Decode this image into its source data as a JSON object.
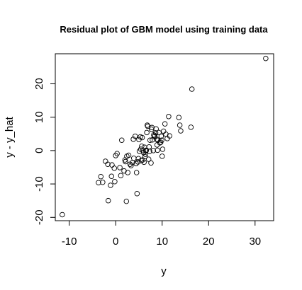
{
  "chart_data": {
    "type": "scatter",
    "title": "Residual plot of GBM model using training data",
    "xlabel": "y",
    "ylabel": "y - y_hat",
    "xlim": [
      -13,
      34
    ],
    "ylim": [
      -21,
      29
    ],
    "x_ticks": [
      -10,
      0,
      10,
      20,
      30
    ],
    "y_ticks": [
      -20,
      -10,
      0,
      10,
      20
    ],
    "x_tick_labels": [
      "-10",
      "0",
      "10",
      "20",
      "30"
    ],
    "y_tick_labels": [
      "-20",
      "-10",
      "0",
      "10",
      "20"
    ],
    "grid": false,
    "legend": "none",
    "marker": "open-circle",
    "colors": {
      "axis": "#000000",
      "points": "#000000",
      "background": "#ffffff"
    },
    "points": [
      {
        "x": -11.5,
        "y": -19.2
      },
      {
        "x": -3.7,
        "y": -9.6
      },
      {
        "x": -3.2,
        "y": -7.8
      },
      {
        "x": -2.8,
        "y": -9.5
      },
      {
        "x": -2.2,
        "y": -3.2
      },
      {
        "x": -1.7,
        "y": -4.1
      },
      {
        "x": -1.6,
        "y": -15.0
      },
      {
        "x": -1.1,
        "y": -10.4
      },
      {
        "x": -0.9,
        "y": -7.7
      },
      {
        "x": -0.8,
        "y": -4.3
      },
      {
        "x": -0.3,
        "y": -5.3
      },
      {
        "x": -0.2,
        "y": -9.3
      },
      {
        "x": 0.0,
        "y": -1.5
      },
      {
        "x": 0.3,
        "y": -0.9
      },
      {
        "x": 0.9,
        "y": -5.1
      },
      {
        "x": 1.1,
        "y": -7.5
      },
      {
        "x": 1.3,
        "y": 3.1
      },
      {
        "x": 1.8,
        "y": -6.1
      },
      {
        "x": 2.0,
        "y": -2.8
      },
      {
        "x": 2.1,
        "y": -3.3
      },
      {
        "x": 2.3,
        "y": -15.2
      },
      {
        "x": 2.4,
        "y": -1.7
      },
      {
        "x": 2.6,
        "y": -6.6
      },
      {
        "x": 2.8,
        "y": -1.4
      },
      {
        "x": 3.1,
        "y": -4.1
      },
      {
        "x": 3.3,
        "y": -4.5
      },
      {
        "x": 3.6,
        "y": -3.6
      },
      {
        "x": 3.8,
        "y": 3.4
      },
      {
        "x": 3.9,
        "y": -2.3
      },
      {
        "x": 4.2,
        "y": 4.3
      },
      {
        "x": 4.4,
        "y": -3.9
      },
      {
        "x": 4.5,
        "y": -6.6
      },
      {
        "x": 4.6,
        "y": -12.9
      },
      {
        "x": 4.8,
        "y": -3.4
      },
      {
        "x": 4.9,
        "y": -2.4
      },
      {
        "x": 5.0,
        "y": 3.3
      },
      {
        "x": 5.1,
        "y": -0.2
      },
      {
        "x": 5.3,
        "y": 4.1
      },
      {
        "x": 5.4,
        "y": 0.4
      },
      {
        "x": 5.5,
        "y": -3.0
      },
      {
        "x": 5.6,
        "y": 1.3
      },
      {
        "x": 5.7,
        "y": 3.9
      },
      {
        "x": 5.8,
        "y": -2.8
      },
      {
        "x": 5.9,
        "y": 0.0
      },
      {
        "x": 6.0,
        "y": -0.6
      },
      {
        "x": 6.1,
        "y": -3.5
      },
      {
        "x": 6.2,
        "y": 1.0
      },
      {
        "x": 6.3,
        "y": -1.8
      },
      {
        "x": 6.4,
        "y": -1.1
      },
      {
        "x": 6.5,
        "y": -0.1
      },
      {
        "x": 6.6,
        "y": 0.1
      },
      {
        "x": 6.7,
        "y": 5.4
      },
      {
        "x": 6.8,
        "y": 7.6
      },
      {
        "x": 6.9,
        "y": 7.3
      },
      {
        "x": 7.1,
        "y": -2.6
      },
      {
        "x": 7.2,
        "y": 1.1
      },
      {
        "x": 7.3,
        "y": -0.2
      },
      {
        "x": 7.4,
        "y": 3.1
      },
      {
        "x": 7.6,
        "y": -3.7
      },
      {
        "x": 7.7,
        "y": 6.4
      },
      {
        "x": 7.8,
        "y": 6.9
      },
      {
        "x": 7.9,
        "y": 3.2
      },
      {
        "x": 8.1,
        "y": 0.0
      },
      {
        "x": 8.2,
        "y": 4.7
      },
      {
        "x": 8.3,
        "y": 4.2
      },
      {
        "x": 8.4,
        "y": 4.4
      },
      {
        "x": 8.6,
        "y": 5.3
      },
      {
        "x": 8.7,
        "y": 6.5
      },
      {
        "x": 8.8,
        "y": 3.4
      },
      {
        "x": 8.9,
        "y": 1.7
      },
      {
        "x": 9.0,
        "y": 0.1
      },
      {
        "x": 9.1,
        "y": 3.1
      },
      {
        "x": 9.3,
        "y": 5.4
      },
      {
        "x": 9.5,
        "y": 2.3
      },
      {
        "x": 9.7,
        "y": 2.5
      },
      {
        "x": 9.8,
        "y": 4.3
      },
      {
        "x": 9.9,
        "y": 3.1
      },
      {
        "x": 10.0,
        "y": -1.7
      },
      {
        "x": 10.1,
        "y": 0.4
      },
      {
        "x": 10.3,
        "y": 5.8
      },
      {
        "x": 10.6,
        "y": 8.0
      },
      {
        "x": 10.8,
        "y": 4.9
      },
      {
        "x": 11.1,
        "y": 3.6
      },
      {
        "x": 11.4,
        "y": 10.2
      },
      {
        "x": 11.6,
        "y": 4.4
      },
      {
        "x": 13.6,
        "y": 9.9
      },
      {
        "x": 13.8,
        "y": 7.6
      },
      {
        "x": 14.0,
        "y": 5.9
      },
      {
        "x": 16.2,
        "y": 7.0
      },
      {
        "x": 16.4,
        "y": 18.4
      },
      {
        "x": 32.3,
        "y": 27.6
      }
    ]
  }
}
